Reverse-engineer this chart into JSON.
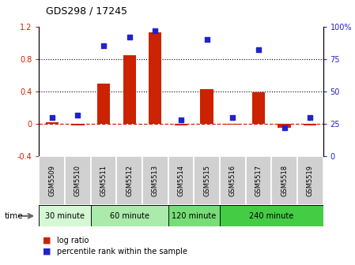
{
  "title": "GDS298 / 17245",
  "samples": [
    "GSM5509",
    "GSM5510",
    "GSM5511",
    "GSM5512",
    "GSM5513",
    "GSM5514",
    "GSM5515",
    "GSM5516",
    "GSM5517",
    "GSM5518",
    "GSM5519"
  ],
  "log_ratio": [
    0.02,
    -0.02,
    0.5,
    0.85,
    1.13,
    -0.02,
    0.43,
    -0.01,
    0.39,
    -0.05,
    -0.02
  ],
  "percentile": [
    30,
    32,
    85,
    92,
    97,
    28,
    90,
    30,
    82,
    22,
    30
  ],
  "bar_color": "#CC2200",
  "dot_color": "#2222CC",
  "dashed_color": "#CC2200",
  "ylim_left": [
    -0.4,
    1.2
  ],
  "ylim_right": [
    0,
    100
  ],
  "yticks_left": [
    -0.4,
    0.0,
    0.4,
    0.8,
    1.2
  ],
  "ytick_labels_left": [
    "-0.4",
    "0",
    "0.4",
    "0.8",
    "1.2"
  ],
  "yticks_right": [
    0,
    25,
    50,
    75,
    100
  ],
  "ytick_labels_right": [
    "0",
    "25",
    "50",
    "75",
    "100%"
  ],
  "dotted_lines": [
    0.4,
    0.8
  ],
  "groups": [
    {
      "label": "30 minute",
      "start": 0,
      "end": 1,
      "color": "#d4f7d4"
    },
    {
      "label": "60 minute",
      "start": 2,
      "end": 4,
      "color": "#aaf0aa"
    },
    {
      "label": "120 minute",
      "start": 5,
      "end": 6,
      "color": "#77dd77"
    },
    {
      "label": "240 minute",
      "start": 7,
      "end": 10,
      "color": "#44cc44"
    }
  ],
  "legend_log_ratio": "log ratio",
  "legend_percentile": "percentile rank within the sample",
  "time_label": "time",
  "bar_width": 0.5,
  "label_bg": "#d0d0d0"
}
